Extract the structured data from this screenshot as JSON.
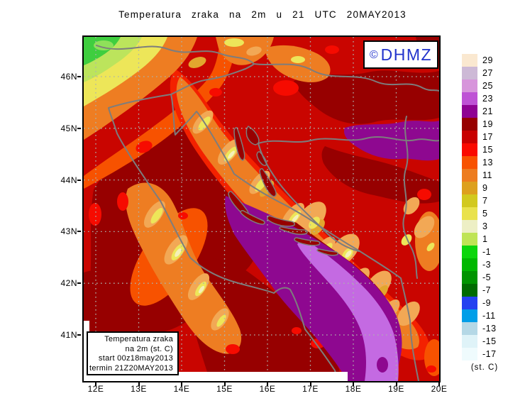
{
  "title": "Temperatura zraka na 2m u 21 UTC 20MAY2013",
  "logo": {
    "copyright": "©",
    "text": "DHMZ",
    "color": "#2233CC"
  },
  "info_box": {
    "lines": [
      "Temperatura zraka",
      "na 2m (st. C)",
      "start 00z18may2013",
      "termin 21Z20MAY2013"
    ]
  },
  "x_axis": {
    "labels": [
      "12E",
      "13E",
      "14E",
      "15E",
      "16E",
      "17E",
      "18E",
      "19E",
      "20E"
    ]
  },
  "y_axis": {
    "labels": [
      "46N",
      "45N",
      "44N",
      "43N",
      "42N",
      "41N"
    ]
  },
  "colorbar": {
    "unit": "(st. C)",
    "entries": [
      {
        "label": "29",
        "color": "#FAE8D0"
      },
      {
        "label": "27",
        "color": "#CDB9D6"
      },
      {
        "label": "25",
        "color": "#D795DB"
      },
      {
        "label": "23",
        "color": "#BE52D5"
      },
      {
        "label": "21",
        "color": "#8F0293"
      },
      {
        "label": "19",
        "color": "#970000"
      },
      {
        "label": "17",
        "color": "#C80000"
      },
      {
        "label": "15",
        "color": "#FA0A00"
      },
      {
        "label": "13",
        "color": "#F85200"
      },
      {
        "label": "11",
        "color": "#ED7C1F"
      },
      {
        "label": "9",
        "color": "#DDA01E"
      },
      {
        "label": "7",
        "color": "#D2C91E"
      },
      {
        "label": "5",
        "color": "#E9E24D"
      },
      {
        "label": "3",
        "color": "#EDEFC5"
      },
      {
        "label": "1",
        "color": "#BFE455"
      },
      {
        "label": "-1",
        "color": "#0CD60C"
      },
      {
        "label": "-3",
        "color": "#00B800"
      },
      {
        "label": "-5",
        "color": "#009400"
      },
      {
        "label": "-7",
        "color": "#006B00"
      },
      {
        "label": "-9",
        "color": "#2442F0"
      },
      {
        "label": "-11",
        "color": "#009EE8"
      },
      {
        "label": "-13",
        "color": "#B5D8E6"
      },
      {
        "label": "-15",
        "color": "#DFF3F8"
      },
      {
        "label": "-17",
        "color": "#EFFBFD"
      }
    ]
  }
}
